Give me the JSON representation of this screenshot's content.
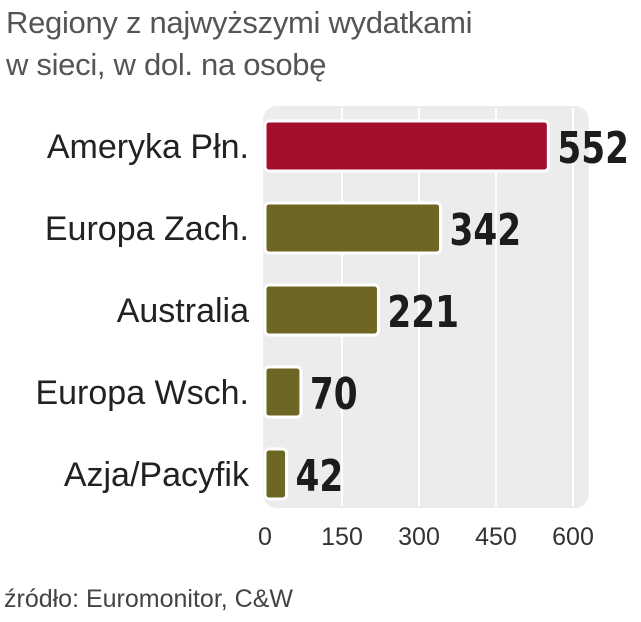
{
  "title": {
    "line1": "Regiony z najwyższymi wydatkami",
    "line2": "w sieci, w dol. na osobę"
  },
  "source": "źródło: Euromonitor, C&W",
  "colors": {
    "highlight_bar": "#a30f2c",
    "default_bar": "#6e6723",
    "panel_background": "#ececec",
    "gridline": "#ffffff",
    "label_text": "#222222",
    "value_text": "#1c1c1c",
    "tick_text": "#333333"
  },
  "chart_data": {
    "type": "bar",
    "orientation": "horizontal",
    "categories": [
      "Ameryka Płn.",
      "Europa Zach.",
      "Australia",
      "Europa Wsch.",
      "Azja/Pacyfik"
    ],
    "values": [
      552,
      342,
      221,
      70,
      42
    ],
    "data_labels": [
      "552",
      "342",
      "221",
      "70",
      "42"
    ],
    "highlight_index": 0,
    "xlim": [
      0,
      600
    ],
    "xticks": [
      0,
      150,
      300,
      450,
      600
    ],
    "xtick_labels": [
      "0",
      "150",
      "300",
      "450",
      "600"
    ],
    "grid": true,
    "legend": "none"
  }
}
